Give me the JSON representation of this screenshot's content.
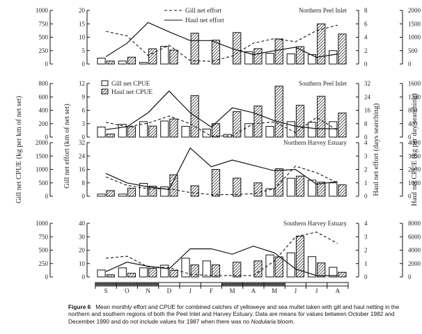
{
  "chart_data": {
    "type": "bar",
    "months": [
      "S",
      "O",
      "N",
      "D",
      "J",
      "F",
      "M",
      "A",
      "M",
      "J",
      "J",
      "A"
    ],
    "season_bar": {
      "dark_months": [
        "S",
        "O",
        "N",
        "M",
        "A",
        "M"
      ],
      "light_months": [
        "D",
        "J",
        "F",
        "J",
        "J",
        "A"
      ]
    },
    "axis_titles": {
      "outer_left": "Gill net CPUE (kg per km of net set)",
      "inner_left": "Gill net effort (km of net set)",
      "inner_right": "Haul net effort (days searching)",
      "outer_right": "Haul net CPUE (kg per day searching)"
    },
    "legend_lines": [
      {
        "label": "Gill net effort",
        "style": "dashed"
      },
      {
        "label": "Haul net effort",
        "style": "solid"
      }
    ],
    "legend_bars": [
      {
        "label": "Gill net CPUE",
        "style": "open"
      },
      {
        "label": "Haul net CPUE",
        "style": "hatched"
      }
    ],
    "panels": [
      {
        "title": "Northern Peel Inlet",
        "gill_cpue_axis": {
          "ticks": [
            "0",
            "250",
            "500",
            "750",
            "1000"
          ],
          "max": 1000
        },
        "gill_effort_axis": {
          "ticks": [
            "0",
            "5",
            "10",
            "15",
            "20"
          ],
          "max": 20
        },
        "haul_effort_axis": {
          "ticks": [
            "0",
            "2",
            "4",
            "6",
            "8"
          ],
          "max": 8
        },
        "haul_cpue_axis": {
          "ticks": [
            "0",
            "500",
            "1000",
            "1500",
            "2000"
          ],
          "max": 2000
        },
        "gill_cpue": [
          110,
          55,
          30,
          330,
          0,
          0,
          0,
          230,
          200,
          190,
          175,
          250
        ],
        "haul_cpue": [
          110,
          255,
          570,
          520,
          1150,
          890,
          1175,
          575,
          935,
          650,
          1500,
          1120
        ],
        "gill_effort": [
          12.2,
          10.5,
          3.2,
          7.0,
          1.3,
          1.0,
          3.0,
          7.8,
          9.5,
          8.3,
          12.5,
          14.5
        ],
        "haul_effort": [
          1.1,
          3.1,
          6.2,
          4.8,
          3.5,
          3.5,
          2.3,
          1.4,
          2.0,
          2.5,
          1.0,
          1.5
        ]
      },
      {
        "title": "Southern Peel Inlet",
        "gill_cpue_axis": {
          "ticks": [
            "0",
            "200",
            "400",
            "600",
            "800"
          ],
          "max": 800
        },
        "gill_effort_axis": {
          "ticks": [
            "0",
            "3",
            "6",
            "9",
            "12"
          ],
          "max": 12
        },
        "haul_effort_axis": {
          "ticks": [
            "0",
            "8",
            "16",
            "24",
            "32"
          ],
          "max": 32
        },
        "haul_cpue_axis": {
          "ticks": [
            "0",
            "400",
            "800",
            "1200",
            "1600"
          ],
          "max": 1600
        },
        "gill_cpue": [
          150,
          190,
          230,
          240,
          160,
          120,
          40,
          200,
          160,
          230,
          220,
          230
        ],
        "haul_cpue": [
          90,
          310,
          330,
          540,
          1240,
          400,
          760,
          930,
          1520,
          950,
          1220,
          720
        ],
        "gill_effort": [
          3.3,
          2.3,
          3.1,
          4.7,
          3.0,
          0.2,
          0.3,
          3.0,
          3.4,
          1.0,
          4.4,
          1.5
        ],
        "haul_effort": [
          4.5,
          6.2,
          14.5,
          27.5,
          14.5,
          6.0,
          17.5,
          14.5,
          9.8,
          6.5,
          5.0,
          5.0
        ]
      },
      {
        "title": "Northern Harvey Estuary",
        "gill_cpue_axis": {
          "ticks": [
            "0",
            "500",
            "1000",
            "1500",
            "2000"
          ],
          "max": 2000
        },
        "gill_effort_axis": {
          "ticks": [
            "0",
            "8",
            "16",
            "24",
            "32"
          ],
          "max": 32
        },
        "haul_effort_axis": {
          "ticks": [
            "0",
            "1",
            "2",
            "3",
            "4"
          ],
          "max": 4
        },
        "haul_cpue_axis": {
          "ticks": [
            "0",
            "1000",
            "2000",
            "3000",
            "4000"
          ],
          "max": 4000
        },
        "gill_cpue": [
          80,
          80,
          480,
          350,
          0,
          0,
          0,
          0,
          280,
          670,
          600,
          500
        ],
        "haul_cpue": [
          420,
          600,
          750,
          1600,
          780,
          2000,
          1350,
          1000,
          2050,
          1500,
          1050,
          850
        ],
        "gill_effort": [
          11.5,
          6.5,
          4.5,
          4.5,
          2.2,
          1.0,
          1.0,
          1.5,
          4.5,
          18.0,
          14.0,
          8.0
        ],
        "haul_effort": [
          1.7,
          1.0,
          0.7,
          0.5,
          3.6,
          2.2,
          2.7,
          2.3,
          1.9,
          2.0,
          0.9,
          1.1
        ]
      },
      {
        "title": "Southern Harvey Estuary",
        "gill_cpue_axis": {
          "ticks": [
            "0",
            "250",
            "500",
            "750",
            "1000"
          ],
          "max": 1000
        },
        "gill_effort_axis": {
          "ticks": [
            "0",
            "10",
            "20",
            "30",
            "40"
          ],
          "max": 40
        },
        "haul_effort_axis": {
          "ticks": [
            "0",
            "1",
            "2",
            "3",
            "4"
          ],
          "max": 4
        },
        "haul_cpue_axis": {
          "ticks": [
            "0",
            "2000",
            "4000",
            "6000",
            "8000"
          ],
          "max": 8000
        },
        "gill_cpue": [
          130,
          170,
          170,
          220,
          350,
          300,
          0,
          0,
          410,
          450,
          380,
          180
        ],
        "haul_cpue": [
          330,
          550,
          1300,
          1000,
          1800,
          1800,
          2200,
          2400,
          3000,
          6100,
          2100,
          700
        ],
        "gill_effort": [
          14.0,
          15.5,
          7.5,
          7.0,
          2.0,
          1.0,
          1.0,
          1.0,
          12.0,
          30.0,
          33.5,
          25.0
        ],
        "haul_effort": [
          0.4,
          1.1,
          0.8,
          0.6,
          2.1,
          2.1,
          1.7,
          2.3,
          1.8,
          0.6,
          0.1,
          0.1
        ]
      }
    ]
  },
  "caption": {
    "label": "Figure 6",
    "text": "Mean monthly effort and CPUE for combined catches of yelloweye and sea mullet taken with gill and haul netting in the northern and southern regions of both the Peel Inlet and Harvey Estuary. Data are means for values between October 1982 and December 1990 and do not include values for 1987 when there was no",
    "italic_word": "Nodularia",
    "tail": "bloom."
  }
}
